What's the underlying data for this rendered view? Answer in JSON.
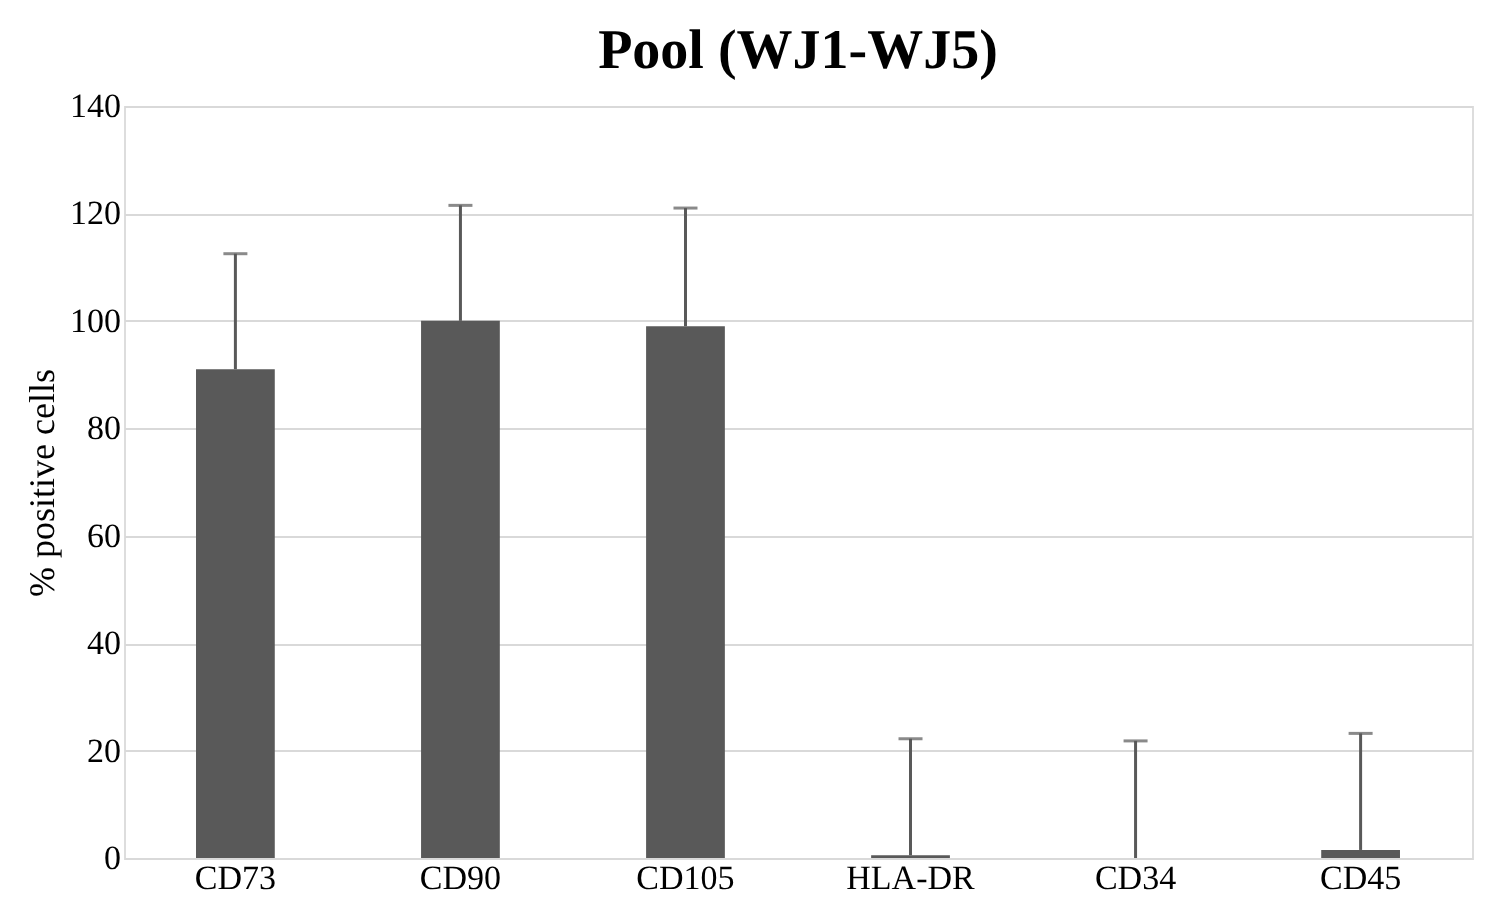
{
  "chart_data": {
    "type": "bar",
    "title": "Pool (WJ1-WJ5)",
    "ylabel": "% positive cells",
    "categories": [
      "CD73",
      "CD90",
      "CD105",
      "HLA-DR",
      "CD34",
      "CD45"
    ],
    "values": [
      91,
      100,
      99,
      0.5,
      0,
      1.5
    ],
    "errors": [
      [
        91,
        112.5
      ],
      [
        100,
        121.5
      ],
      [
        99,
        121
      ],
      [
        0.5,
        22.2
      ],
      [
        0,
        21.8
      ],
      [
        1.5,
        23.2
      ]
    ],
    "color": "#595959",
    "ylim": [
      0,
      140
    ],
    "yticks": [
      0,
      20,
      40,
      60,
      80,
      100,
      120,
      140
    ],
    "grid": "y"
  }
}
